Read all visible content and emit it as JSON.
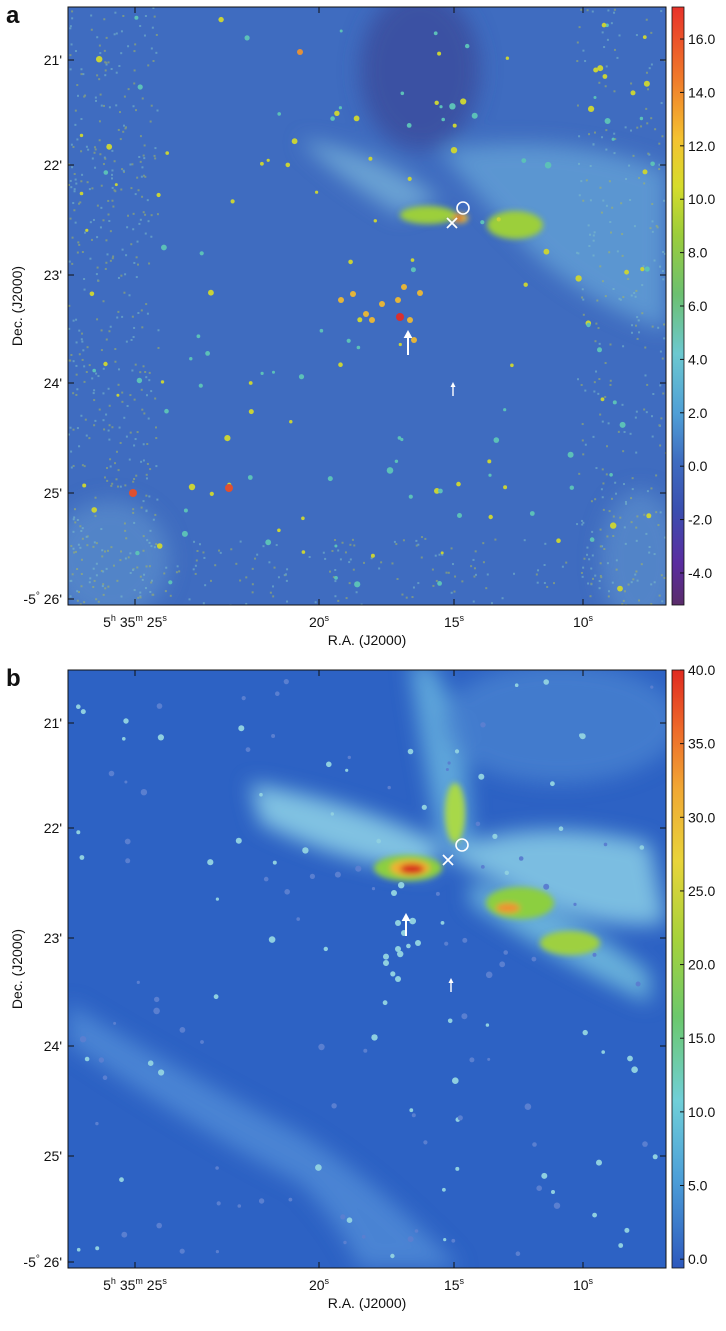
{
  "figure": {
    "panels": [
      {
        "id": "a",
        "letter": "a",
        "xlabel": "R.A. (J2000)",
        "ylabel": "Dec. (J2000)",
        "ra_ticks": [
          {
            "main": "5",
            "s1": "h",
            "m": " 35",
            "s2": "m",
            "rest": " 25",
            "s3": "s"
          },
          {
            "main": "20",
            "s3": "s"
          },
          {
            "main": "15",
            "s3": "s"
          },
          {
            "main": "10",
            "s3": "s"
          }
        ],
        "dec_ticks": [
          "21'",
          "22'",
          "23'",
          "24'",
          "25'"
        ],
        "dec_bottom": {
          "deg": "-5",
          "sym": "°",
          "min": " 26'"
        },
        "colorbar_ticks": [
          "16.0",
          "14.0",
          "12.0",
          "10.0",
          "8.0",
          "6.0",
          "4.0",
          "2.0",
          "0.0",
          "-2.0",
          "-4.0"
        ],
        "colorbar_range": [
          -5.2,
          17.2
        ],
        "colors": {
          "background": "#3f6cc0",
          "nebula_bright": "#7ec8e0",
          "clump_green": "#9ccf3a",
          "peak": "#d8262a",
          "dark_channel": "#3a4fa0"
        }
      },
      {
        "id": "b",
        "letter": "b",
        "xlabel": "R.A. (J2000)",
        "ylabel": "Dec. (J2000)",
        "ra_ticks": [
          {
            "main": "5",
            "s1": "h",
            "m": " 35",
            "s2": "m",
            "rest": " 25",
            "s3": "s"
          },
          {
            "main": "20",
            "s3": "s"
          },
          {
            "main": "15",
            "s3": "s"
          },
          {
            "main": "10",
            "s3": "s"
          }
        ],
        "dec_ticks": [
          "21'",
          "22'",
          "23'",
          "24'",
          "25'"
        ],
        "dec_bottom": {
          "deg": "-5",
          "sym": "°",
          "min": " 26'"
        },
        "colorbar_ticks": [
          "40.0",
          "35.0",
          "30.0",
          "25.0",
          "20.0",
          "15.0",
          "10.0",
          "5.0",
          "0.0"
        ],
        "colorbar_range": [
          -0.6,
          40.0
        ],
        "colors": {
          "background": "#2d62c4",
          "nebula_bright": "#8fd4e8",
          "clump_green": "#8ccf40",
          "peak": "#d62a1e",
          "dark_channel": "#2a50b0"
        }
      }
    ]
  }
}
